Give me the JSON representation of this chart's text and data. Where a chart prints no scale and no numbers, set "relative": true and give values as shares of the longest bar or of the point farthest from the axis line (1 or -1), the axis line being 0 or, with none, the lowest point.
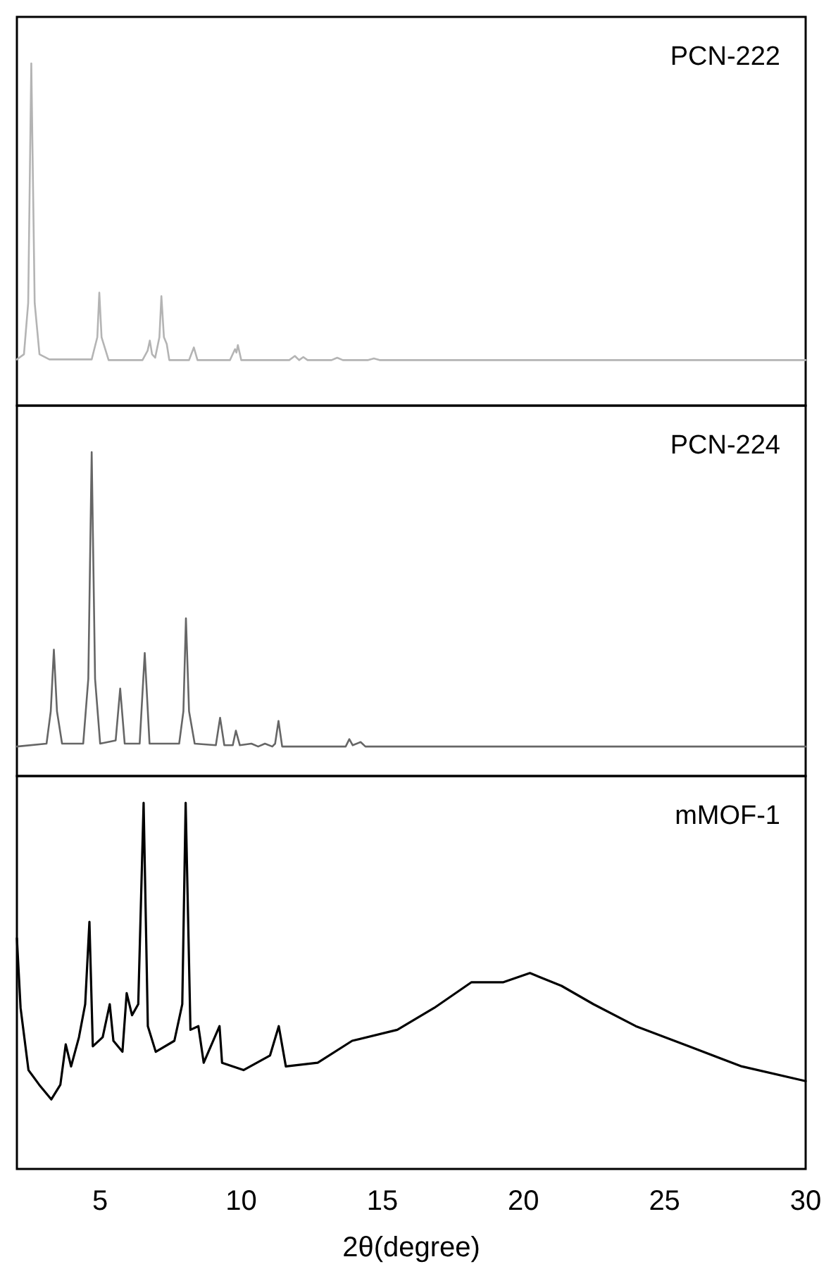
{
  "chart_data": [
    {
      "type": "line",
      "relative": true,
      "xlim": [
        2.05,
        30
      ],
      "xticks": [
        5,
        10,
        15,
        20,
        25,
        30
      ],
      "tick_labels": false,
      "series": [
        {
          "name": "PCN-222",
          "color": "#b4b4b4",
          "x": [
            2.05,
            2.3,
            2.45,
            2.56,
            2.68,
            2.85,
            3.2,
            4.7,
            4.9,
            4.97,
            5.05,
            5.3,
            6.5,
            6.68,
            6.76,
            6.84,
            6.95,
            7.1,
            7.17,
            7.26,
            7.36,
            7.45,
            8.15,
            8.32,
            8.45,
            9.6,
            9.78,
            9.83,
            9.88,
            10.0,
            11.7,
            11.9,
            12.05,
            12.2,
            12.35,
            13.2,
            13.4,
            13.6,
            14.5,
            14.7,
            14.9,
            30
          ],
          "values": [
            0.135,
            0.15,
            0.3,
            1,
            0.3,
            0.15,
            0.135,
            0.135,
            0.2,
            0.33,
            0.2,
            0.133,
            0.133,
            0.16,
            0.19,
            0.15,
            0.14,
            0.2,
            0.32,
            0.2,
            0.18,
            0.133,
            0.133,
            0.17,
            0.133,
            0.133,
            0.165,
            0.155,
            0.177,
            0.133,
            0.133,
            0.145,
            0.133,
            0.142,
            0.133,
            0.133,
            0.14,
            0.133,
            0.133,
            0.138,
            0.133,
            0.133
          ]
        }
      ]
    },
    {
      "type": "line",
      "relative": true,
      "xlim": [
        2.05,
        30
      ],
      "xticks": [
        5,
        10,
        15,
        20,
        25,
        30
      ],
      "tick_labels": false,
      "series": [
        {
          "name": "PCN-224",
          "color": "#666666",
          "x": [
            2.05,
            3.1,
            3.25,
            3.36,
            3.47,
            3.65,
            4.4,
            4.58,
            4.7,
            4.82,
            5.0,
            5.55,
            5.71,
            5.87,
            6.4,
            6.58,
            6.75,
            7.8,
            7.95,
            8.04,
            8.15,
            8.35,
            9.1,
            9.25,
            9.4,
            9.7,
            9.81,
            9.95,
            10.36,
            10.6,
            10.84,
            11.1,
            11.2,
            11.32,
            11.45,
            13.7,
            13.83,
            13.95,
            14.23,
            14.4,
            30
          ],
          "values": [
            0.091,
            0.1,
            0.2,
            0.39,
            0.2,
            0.1,
            0.1,
            0.3,
            1,
            0.3,
            0.1,
            0.11,
            0.27,
            0.1,
            0.1,
            0.38,
            0.1,
            0.1,
            0.2,
            0.487,
            0.2,
            0.1,
            0.095,
            0.18,
            0.095,
            0.095,
            0.14,
            0.095,
            0.1,
            0.091,
            0.1,
            0.091,
            0.1,
            0.17,
            0.091,
            0.091,
            0.114,
            0.095,
            0.105,
            0.091,
            0.091
          ]
        }
      ]
    },
    {
      "type": "line",
      "relative": true,
      "xlim": [
        2.05,
        30
      ],
      "xticks": [
        5,
        10,
        15,
        20,
        25,
        30
      ],
      "tick_labels": "x",
      "xlabel": "2θ(degree)",
      "series": [
        {
          "name": "mMOF-1",
          "color": "#000000",
          "x": [
            2.05,
            2.18,
            2.46,
            2.84,
            3.27,
            3.59,
            3.78,
            3.97,
            4.25,
            4.47,
            4.62,
            4.74,
            5.09,
            5.34,
            5.47,
            5.79,
            5.94,
            6.13,
            6.35,
            6.54,
            6.69,
            6.97,
            7.63,
            7.91,
            8.03,
            8.2,
            8.48,
            8.67,
            9.23,
            9.32,
            10.08,
            11.02,
            11.33,
            11.58,
            12.71,
            13.93,
            15.53,
            16.84,
            18.16,
            19.29,
            20.23,
            21.35,
            22.48,
            23.98,
            25.86,
            27.74,
            30
          ],
          "values": [
            0.63,
            0.44,
            0.27,
            0.23,
            0.19,
            0.23,
            0.34,
            0.28,
            0.36,
            0.45,
            0.675,
            0.335,
            0.36,
            0.45,
            0.35,
            0.32,
            0.48,
            0.42,
            0.45,
            1,
            0.39,
            0.32,
            0.35,
            0.45,
            1,
            0.38,
            0.39,
            0.29,
            0.39,
            0.29,
            0.27,
            0.31,
            0.39,
            0.28,
            0.29,
            0.35,
            0.38,
            0.44,
            0.51,
            0.51,
            0.535,
            0.5,
            0.45,
            0.39,
            0.335,
            0.28,
            0.24
          ]
        }
      ]
    }
  ]
}
